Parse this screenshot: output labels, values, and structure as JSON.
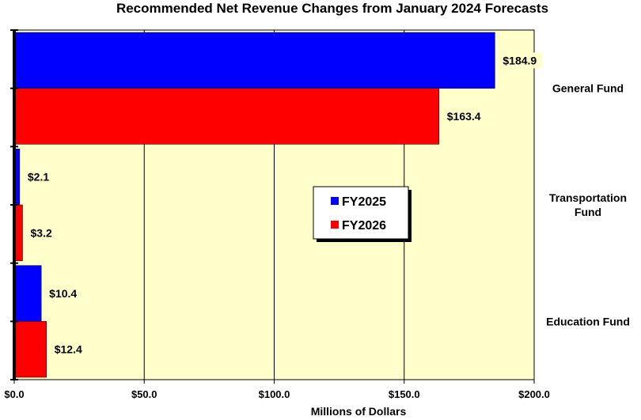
{
  "chart_data": {
    "type": "bar",
    "orientation": "horizontal",
    "title": "Recommended Net Revenue Changes from January 2024 Forecasts",
    "xlabel": "Millions of Dollars",
    "ylabel": "",
    "xlim": [
      0,
      200
    ],
    "x_ticks": [
      "$0.0",
      "$50.0",
      "$100.0",
      "$150.0",
      "$200.0"
    ],
    "x_tick_values": [
      0,
      50,
      100,
      150,
      200
    ],
    "categories": [
      {
        "lines": [
          "General Fund"
        ]
      },
      {
        "lines": [
          "Transportation",
          "Fund"
        ]
      },
      {
        "lines": [
          "Education Fund"
        ]
      }
    ],
    "series": [
      {
        "name": "FY2025",
        "color": "#0000ff",
        "values": [
          184.9,
          2.1,
          10.4
        ],
        "labels": [
          "$184.9",
          "$2.1",
          "$10.4"
        ]
      },
      {
        "name": "FY2026",
        "color": "#ff0000",
        "values": [
          163.4,
          3.2,
          12.4
        ],
        "labels": [
          "$163.4",
          "$3.2",
          "$12.4"
        ]
      }
    ],
    "grid": "vertical",
    "plot_background": "#ffffcc",
    "legend_position": "center"
  }
}
